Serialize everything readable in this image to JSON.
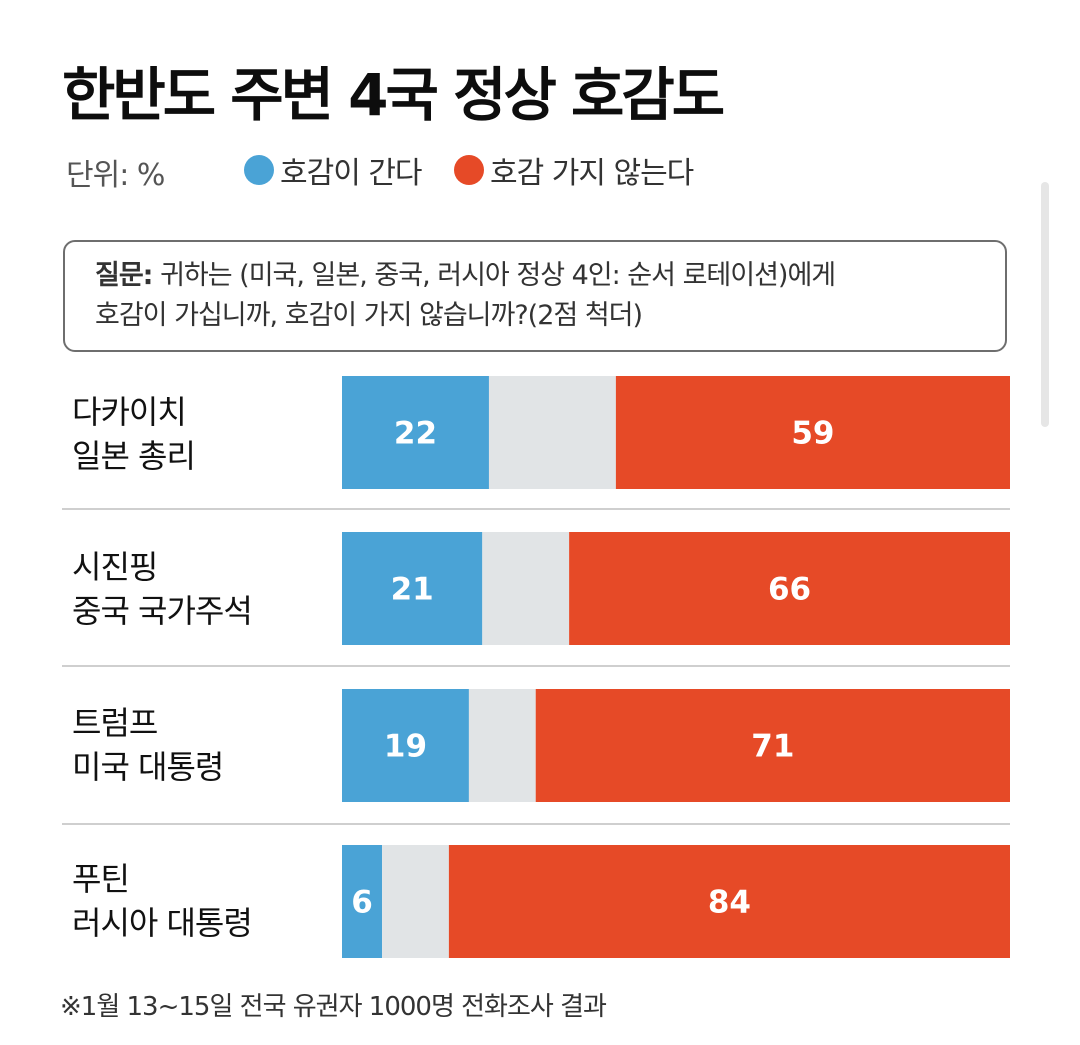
{
  "colors": {
    "favorable": "#4aa3d6",
    "neutral": "#e1e4e6",
    "unfavorable": "#e64a27"
  },
  "chart_data": {
    "type": "bar",
    "stacked": true,
    "orientation": "horizontal",
    "title": "한반도 주변 4국 정상 호감도",
    "unit_label": "단위: %",
    "question_label": "질문:",
    "question_lines": [
      "귀하는 (미국, 일본, 중국, 러시아 정상 4인: 순서 로테이션)에게",
      "호감이 가십니까, 호감이 가지 않습니까?(2점 척더)"
    ],
    "categories": [
      [
        "다카이치",
        "일본 총리"
      ],
      [
        "시진핑",
        "중국 국가주석"
      ],
      [
        "트럼프",
        "미국 대통령"
      ],
      [
        "푸틴",
        "러시아 대통령"
      ]
    ],
    "series": [
      {
        "name": "호감이 간다",
        "values": [
          22,
          21,
          19,
          6
        ],
        "labeled": true
      },
      {
        "name": "",
        "values": [
          19,
          13,
          10,
          10
        ],
        "labeled": false
      },
      {
        "name": "호감 가지 않는다",
        "values": [
          59,
          66,
          71,
          84
        ],
        "labeled": true
      }
    ],
    "xlim": [
      0,
      100
    ],
    "legend_position": "top",
    "grid": false,
    "footnote": "※1월 13~15일 전국 유권자 1000명 전화조사 결과"
  }
}
